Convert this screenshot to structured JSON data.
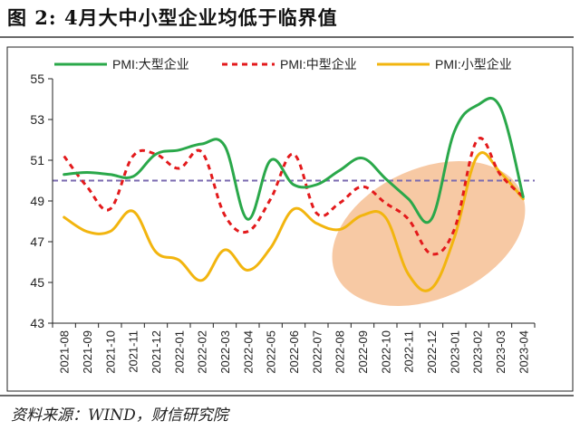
{
  "figure": {
    "title": "图 2: 4月大中小型企业均低于临界值",
    "source": "资料来源：WIND，财信研究院"
  },
  "colors": {
    "large": "#2aa84a",
    "medium": "#e31a1c",
    "small": "#f2b50f",
    "threshold": "#7b6bb0",
    "highlight": "#f6c39a"
  },
  "chart_data": {
    "type": "line",
    "categories": [
      "2021-08",
      "2021-09",
      "2021-10",
      "2021-11",
      "2021-12",
      "2022-01",
      "2022-02",
      "2022-03",
      "2022-04",
      "2022-05",
      "2022-06",
      "2022-07",
      "2022-08",
      "2022-09",
      "2022-10",
      "2022-11",
      "2022-12",
      "2023-01",
      "2023-02",
      "2023-03",
      "2023-04"
    ],
    "series": [
      {
        "name": "PMI:大型企业",
        "color": "#2aa84a",
        "style": "solid",
        "values": [
          50.3,
          50.4,
          50.3,
          50.2,
          51.3,
          51.5,
          51.8,
          51.7,
          48.1,
          51.0,
          49.8,
          49.8,
          50.5,
          51.1,
          50.1,
          49.1,
          48.1,
          52.4,
          53.7,
          53.6,
          49.2
        ]
      },
      {
        "name": "PMI:中型企业",
        "color": "#e31a1c",
        "style": "dashed",
        "values": [
          51.2,
          49.7,
          48.6,
          51.2,
          51.3,
          50.6,
          51.4,
          48.3,
          47.5,
          49.1,
          51.3,
          48.4,
          48.9,
          49.7,
          48.9,
          48.1,
          46.4,
          47.6,
          52.0,
          50.3,
          49.2
        ]
      },
      {
        "name": "PMI:小型企业",
        "color": "#f2b50f",
        "style": "solid",
        "values": [
          48.2,
          47.5,
          47.5,
          48.5,
          46.5,
          46.1,
          45.1,
          46.6,
          45.6,
          46.7,
          48.6,
          47.9,
          47.6,
          48.3,
          48.2,
          45.4,
          44.7,
          47.2,
          51.2,
          50.4,
          49.1
        ]
      }
    ],
    "threshold": 50,
    "ylim": [
      43,
      55
    ],
    "yticks": [
      43,
      45,
      47,
      49,
      51,
      53,
      55
    ],
    "legend": "top",
    "grid": false
  }
}
